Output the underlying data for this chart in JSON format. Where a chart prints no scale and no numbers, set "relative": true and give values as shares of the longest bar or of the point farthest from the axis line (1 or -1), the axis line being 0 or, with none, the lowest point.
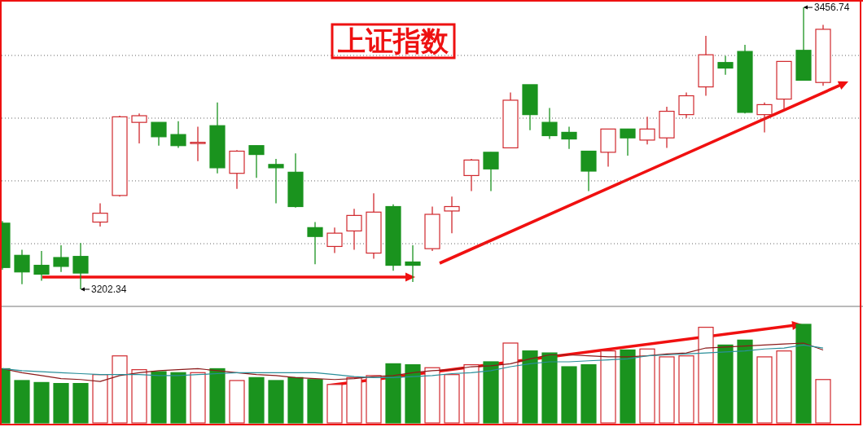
{
  "chart_data": [
    {
      "type": "candlestick",
      "title": "上证指数",
      "categories": [
        null,
        null,
        null,
        null,
        null,
        null,
        null,
        null,
        null,
        null,
        null,
        null,
        null,
        null,
        null,
        null,
        null,
        null,
        null,
        null,
        null,
        null,
        null,
        null,
        null,
        null,
        null,
        null,
        null,
        null,
        null,
        null,
        null,
        null,
        null,
        null,
        null,
        null,
        null,
        null,
        null,
        null,
        null
      ],
      "ohlc": [
        [
          3262,
          3264,
          3220,
          3222
        ],
        [
          3233,
          3238,
          3207,
          3218
        ],
        [
          3224,
          3237,
          3210,
          3216
        ],
        [
          3231,
          3242,
          3218,
          3223
        ],
        [
          3232,
          3244,
          3202.34,
          3217
        ],
        [
          3263,
          3280,
          3259,
          3271
        ],
        [
          3287,
          3359,
          3286,
          3358
        ],
        [
          3353,
          3361,
          3334,
          3359
        ],
        [
          3353,
          3353,
          3332,
          3340
        ],
        [
          3342,
          3354,
          3330,
          3332
        ],
        [
          3334,
          3349,
          3318,
          3335
        ],
        [
          3350,
          3371,
          3307,
          3312
        ],
        [
          3307,
          3328,
          3293,
          3327
        ],
        [
          3332,
          3332,
          3303,
          3324
        ],
        [
          3315,
          3320,
          3280,
          3312
        ],
        [
          3308,
          3325,
          3276,
          3277
        ],
        [
          3258,
          3263,
          3225,
          3250
        ],
        [
          3241,
          3258,
          3235,
          3253
        ],
        [
          3255,
          3275,
          3238,
          3269
        ],
        [
          3235,
          3289,
          3230,
          3272
        ],
        [
          3277,
          3279,
          3219,
          3224
        ],
        [
          3227,
          3242,
          3209,
          3224
        ],
        [
          3239,
          3277,
          3237,
          3270
        ],
        [
          3273,
          3286,
          3253,
          3277
        ],
        [
          3305,
          3320,
          3291,
          3319
        ],
        [
          3326,
          3326,
          3291,
          3311
        ],
        [
          3330,
          3380,
          3330,
          3373
        ],
        [
          3387,
          3387,
          3346,
          3360
        ],
        [
          3353,
          3366,
          3338,
          3341
        ],
        [
          3344,
          3349,
          3329,
          3338
        ],
        [
          3327,
          3327,
          3291,
          3309
        ],
        [
          3326,
          3347,
          3313,
          3347
        ],
        [
          3347,
          3347,
          3323,
          3339
        ],
        [
          3337,
          3358,
          3333,
          3347
        ],
        [
          3339,
          3367,
          3330,
          3363
        ],
        [
          3360,
          3380,
          3357,
          3377
        ],
        [
          3385,
          3431,
          3377,
          3414
        ],
        [
          3407,
          3413,
          3396,
          3402
        ],
        [
          3417,
          3423,
          3361,
          3362
        ],
        [
          3360,
          3371,
          3344,
          3369
        ],
        [
          3374,
          3408,
          3364,
          3408
        ],
        [
          3418,
          3456.74,
          3391,
          3391
        ],
        [
          3389,
          3441,
          3386,
          3437
        ]
      ],
      "colors": [
        "#1a931e",
        "#1a931e",
        "#1a931e",
        "#1a931e",
        "#1a931e",
        "#d0282d",
        "#d0282d",
        "#d0282d",
        "#1a931e",
        "#1a931e",
        "#d0282d",
        "#1a931e",
        "#d0282d",
        "#1a931e",
        "#1a931e",
        "#1a931e",
        "#1a931e",
        "#d0282d",
        "#d0282d",
        "#d0282d",
        "#1a931e",
        "#1a931e",
        "#d0282d",
        "#d0282d",
        "#d0282d",
        "#1a931e",
        "#d0282d",
        "#1a931e",
        "#1a931e",
        "#1a931e",
        "#1a931e",
        "#d0282d",
        "#1a931e",
        "#d0282d",
        "#d0282d",
        "#d0282d",
        "#d0282d",
        "#1a931e",
        "#1a931e",
        "#d0282d",
        "#d0282d",
        "#1a931e",
        "#d0282d"
      ],
      "ylim": [
        3186.9,
        3462.7
      ],
      "yticks": [
        {
          "value": 3243.5,
          "label": null
        },
        {
          "value": 3300.2,
          "label": null
        },
        {
          "value": 3356.8,
          "label": null
        },
        {
          "value": 3413.4,
          "label": null
        }
      ],
      "grid": true,
      "annotations": [
        "3456.74",
        "3202.34"
      ]
    },
    {
      "type": "bar",
      "relative": true,
      "categories": [
        null,
        null,
        null,
        null,
        null,
        null,
        null,
        null,
        null,
        null,
        null,
        null,
        null,
        null,
        null,
        null,
        null,
        null,
        null,
        null,
        null,
        null,
        null,
        null,
        null,
        null,
        null,
        null,
        null,
        null,
        null,
        null,
        null,
        null,
        null,
        null,
        null,
        null,
        null,
        null,
        null,
        null,
        null
      ],
      "series": [
        {
          "type": "bar",
          "values": [
            0.55,
            0.43,
            0.41,
            0.4,
            0.4,
            0.49,
            0.68,
            0.54,
            0.52,
            0.51,
            0.51,
            0.55,
            0.43,
            0.46,
            0.43,
            0.46,
            0.44,
            0.39,
            0.46,
            0.48,
            0.6,
            0.59,
            0.56,
            0.49,
            0.59,
            0.62,
            0.81,
            0.73,
            0.71,
            0.57,
            0.59,
            0.73,
            0.74,
            0.75,
            0.67,
            0.68,
            0.97,
            0.79,
            0.84,
            0.67,
            0.73,
            1,
            0.44
          ],
          "colors": [
            "#1a931e",
            "#1a931e",
            "#1a931e",
            "#1a931e",
            "#1a931e",
            "#d0282d",
            "#d0282d",
            "#d0282d",
            "#1a931e",
            "#1a931e",
            "#d0282d",
            "#1a931e",
            "#d0282d",
            "#1a931e",
            "#1a931e",
            "#1a931e",
            "#1a931e",
            "#d0282d",
            "#d0282d",
            "#d0282d",
            "#1a931e",
            "#1a931e",
            "#d0282d",
            "#d0282d",
            "#d0282d",
            "#1a931e",
            "#d0282d",
            "#1a931e",
            "#1a931e",
            "#1a931e",
            "#1a931e",
            "#d0282d",
            "#1a931e",
            "#d0282d",
            "#d0282d",
            "#d0282d",
            "#d0282d",
            "#1a931e",
            "#1a931e",
            "#d0282d",
            "#d0282d",
            "#1a931e",
            "#d0282d"
          ]
        },
        {
          "type": "line",
          "color": "#8b1a1a",
          "values": [
            0.55,
            0.51,
            0.48,
            0.45,
            0.44,
            0.42,
            0.48,
            0.51,
            0.53,
            0.54,
            0.55,
            0.53,
            0.51,
            0.49,
            0.48,
            0.46,
            0.45,
            0.44,
            0.45,
            0.47,
            0.48,
            0.51,
            0.53,
            0.54,
            0.57,
            0.58,
            0.6,
            0.65,
            0.69,
            0.69,
            0.68,
            0.67,
            0.67,
            0.68,
            0.7,
            0.71,
            0.76,
            0.77,
            0.78,
            0.79,
            0.8,
            0.81,
            0.74
          ]
        },
        {
          "type": "line",
          "color": "#2a8f9a",
          "values": [
            0.55,
            0.53,
            0.52,
            0.51,
            0.5,
            0.49,
            0.49,
            0.49,
            0.48,
            0.48,
            0.49,
            0.5,
            0.51,
            0.51,
            0.51,
            0.51,
            0.51,
            0.49,
            0.47,
            0.46,
            0.46,
            0.47,
            0.48,
            0.5,
            0.51,
            0.53,
            0.57,
            0.6,
            0.62,
            0.62,
            0.63,
            0.64,
            0.65,
            0.68,
            0.69,
            0.7,
            0.71,
            0.72,
            0.73,
            0.75,
            0.76,
            0.79,
            0.76
          ]
        }
      ]
    }
  ]
}
